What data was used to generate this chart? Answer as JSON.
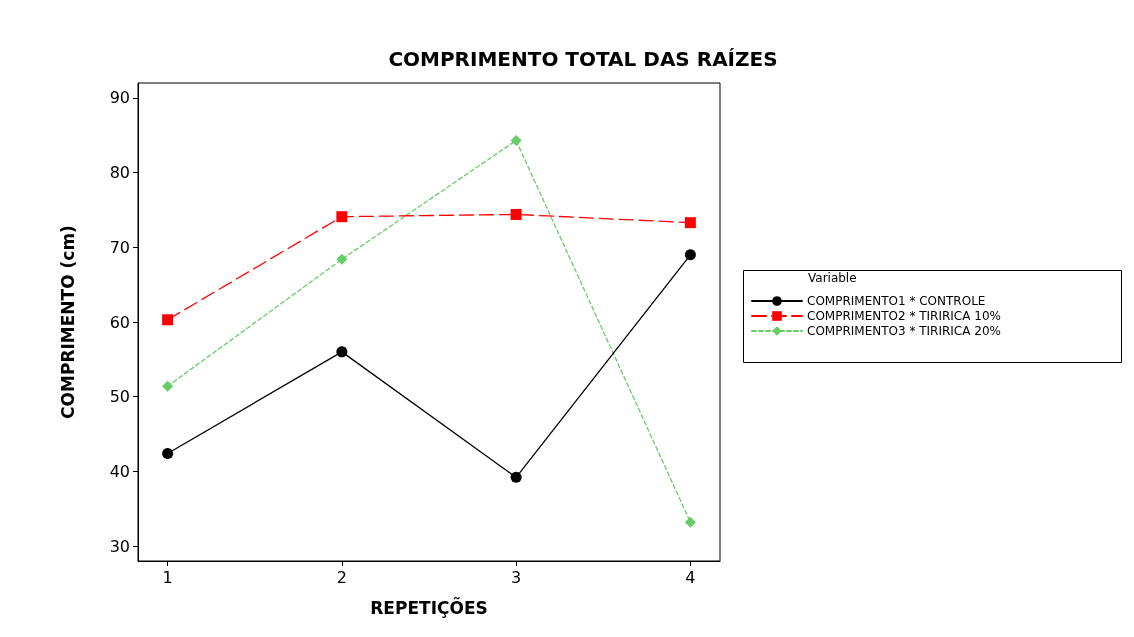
{
  "chart_data": {
    "type": "line",
    "title": "COMPRIMENTO TOTAL DAS RAÍZES",
    "xlabel": "REPETIÇÕES",
    "ylabel": "COMPRIMENTO (cm)",
    "legend_title": "Variable",
    "x": [
      1,
      2,
      3,
      4
    ],
    "xlim": [
      0.83,
      4.17
    ],
    "xticks": [
      1,
      2,
      3,
      4
    ],
    "ylim": [
      28,
      92
    ],
    "yticks": [
      30,
      40,
      50,
      60,
      70,
      80,
      90
    ],
    "grid": false,
    "legend": "right",
    "series": [
      {
        "name": "COMPRIMENTO1 * CONTROLE",
        "color": "#000000",
        "marker": "circle",
        "line_style": "solid",
        "values": [
          42.4,
          56.0,
          39.2,
          69.0
        ]
      },
      {
        "name": "COMPRIMENTO2 * TIRIRICA 10%",
        "color": "#ff0000",
        "marker": "square",
        "line_style": "dashed",
        "values": [
          60.3,
          74.1,
          74.4,
          73.3
        ]
      },
      {
        "name": "COMPRIMENTO3 * TIRIRICA 20%",
        "color": "#66cc66",
        "marker": "diamond",
        "line_style": "dotted",
        "values": [
          51.4,
          68.4,
          84.3,
          33.2
        ]
      }
    ]
  }
}
